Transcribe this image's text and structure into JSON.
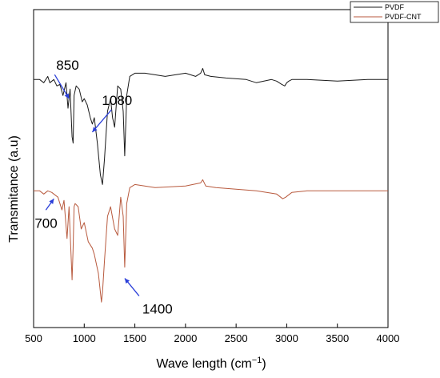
{
  "chart_data": {
    "type": "line",
    "xlabel": "Wave length (cm",
    "xlabel_sup": "−1",
    "xlabel_close": ")",
    "ylabel": "Transmitance (a.u)",
    "xlim": [
      500,
      4000
    ],
    "xticks": [
      500,
      1000,
      1500,
      2000,
      2500,
      3000,
      3500,
      4000
    ],
    "yaxis_ticks_shown": false,
    "grid": false,
    "legend_placement": "top-right",
    "series": [
      {
        "name": "PVDF",
        "color": "#1a1a1a",
        "offset": 0.78,
        "x": [
          500,
          560,
          600,
          640,
          660,
          680,
          700,
          730,
          760,
          790,
          820,
          840,
          860,
          880,
          890,
          900,
          920,
          950,
          980,
          1000,
          1030,
          1060,
          1080,
          1100,
          1130,
          1160,
          1180,
          1200,
          1230,
          1260,
          1280,
          1300,
          1330,
          1360,
          1385,
          1400,
          1420,
          1450,
          1500,
          1600,
          1800,
          2000,
          2100,
          2150,
          2170,
          2190,
          2250,
          2400,
          2600,
          2700,
          2850,
          2900,
          2950,
          2980,
          3000,
          3020,
          3050,
          3200,
          3500,
          3800,
          4000
        ],
        "y": [
          0.0,
          0.0,
          -0.01,
          0.01,
          -0.01,
          -0.005,
          0.0,
          -0.02,
          -0.015,
          -0.05,
          -0.01,
          -0.09,
          -0.03,
          -0.18,
          -0.2,
          -0.05,
          -0.02,
          -0.03,
          -0.07,
          -0.06,
          -0.08,
          -0.12,
          -0.14,
          -0.12,
          -0.2,
          -0.3,
          -0.33,
          -0.25,
          -0.1,
          -0.06,
          -0.12,
          -0.15,
          -0.02,
          -0.03,
          -0.1,
          -0.24,
          -0.05,
          0.01,
          0.02,
          0.02,
          0.01,
          0.02,
          0.01,
          0.02,
          0.035,
          0.015,
          0.01,
          0.005,
          0.0,
          -0.01,
          0.0,
          -0.005,
          -0.015,
          -0.02,
          -0.01,
          -0.005,
          0.0,
          0.0,
          -0.005,
          0.0,
          0.0
        ]
      },
      {
        "name": "PVDF-CNT",
        "color": "#b85a3e",
        "offset": 0.43,
        "x": [
          500,
          560,
          600,
          640,
          680,
          700,
          740,
          780,
          800,
          830,
          850,
          870,
          880,
          890,
          900,
          910,
          940,
          970,
          1000,
          1040,
          1080,
          1100,
          1140,
          1170,
          1180,
          1200,
          1230,
          1260,
          1300,
          1330,
          1360,
          1385,
          1400,
          1420,
          1450,
          1500,
          1700,
          2000,
          2150,
          2170,
          2200,
          2300,
          2500,
          2700,
          2900,
          2960,
          2990,
          3010,
          3050,
          3200,
          3500,
          3800,
          4000
        ],
        "y": [
          0.0,
          0.0,
          -0.01,
          0.0,
          -0.005,
          -0.01,
          -0.02,
          -0.06,
          -0.03,
          -0.15,
          -0.05,
          -0.2,
          -0.28,
          -0.18,
          -0.05,
          -0.04,
          -0.05,
          -0.12,
          -0.1,
          -0.16,
          -0.18,
          -0.2,
          -0.26,
          -0.35,
          -0.32,
          -0.22,
          -0.08,
          -0.05,
          -0.12,
          -0.14,
          -0.02,
          -0.08,
          -0.24,
          -0.04,
          0.01,
          0.02,
          0.01,
          0.015,
          0.025,
          0.035,
          0.015,
          0.01,
          0.005,
          0.0,
          -0.01,
          -0.025,
          -0.02,
          -0.015,
          -0.005,
          0.0,
          0.0,
          0.0,
          0.0
        ]
      }
    ],
    "annotations": [
      {
        "text": "850",
        "arrow_x": 850,
        "series": "PVDF"
      },
      {
        "text": "1080",
        "arrow_x": 1080,
        "series": "PVDF"
      },
      {
        "text": "700",
        "arrow_x": 700,
        "series": "PVDF-CNT"
      },
      {
        "text": "1400",
        "arrow_x": 1400,
        "series": "PVDF-CNT"
      }
    ],
    "annotation_arrow_color": "#2b3fd9"
  }
}
